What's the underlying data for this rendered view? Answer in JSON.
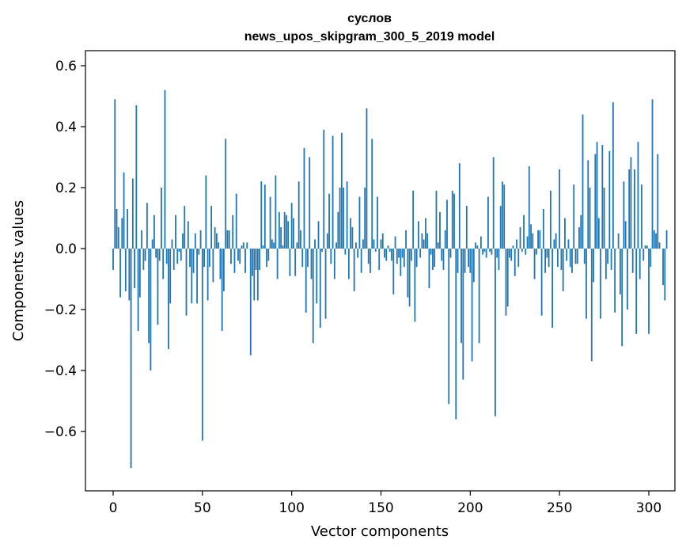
{
  "chart_data": {
    "type": "bar",
    "title_line1": "суслов",
    "title_line2": "news_upos_skipgram_300_5_2019 model",
    "xlabel": "Vector components",
    "ylabel": "Components values",
    "xlim": [
      -15,
      315
    ],
    "ylim": [
      -0.8,
      0.65
    ],
    "x_ticks": [
      0,
      50,
      100,
      150,
      200,
      250,
      300
    ],
    "x_tick_labels": [
      "0",
      "50",
      "100",
      "150",
      "200",
      "250",
      "300"
    ],
    "y_ticks": [
      -0.6,
      -0.4,
      -0.2,
      0.0,
      0.2,
      0.4,
      0.6
    ],
    "y_tick_labels": [
      "−0.6",
      "−0.4",
      "−0.2",
      "0.0",
      "0.2",
      "0.4",
      "0.6"
    ],
    "bar_color": "#1f77b4",
    "values": [
      -0.07,
      0.49,
      0.13,
      0.07,
      -0.16,
      0.1,
      0.25,
      -0.14,
      0.13,
      -0.17,
      -0.72,
      0.23,
      -0.13,
      0.47,
      -0.27,
      -0.16,
      0.06,
      -0.07,
      -0.04,
      0.15,
      -0.31,
      -0.4,
      0.03,
      0.11,
      -0.03,
      -0.25,
      -0.04,
      0.2,
      -0.1,
      0.52,
      -0.05,
      -0.33,
      -0.18,
      0.03,
      -0.07,
      0.11,
      -0.05,
      -0.01,
      -0.04,
      0.05,
      0.14,
      -0.22,
      0.09,
      -0.06,
      -0.18,
      -0.08,
      0.05,
      -0.18,
      -0.02,
      0.06,
      -0.63,
      -0.06,
      0.24,
      -0.17,
      -0.06,
      0.14,
      -0.11,
      0.07,
      0.05,
      0.02,
      -0.1,
      -0.27,
      -0.14,
      0.36,
      0.06,
      0.06,
      -0.05,
      0.11,
      -0.08,
      0.18,
      -0.04,
      -0.05,
      0.01,
      0.02,
      -0.08,
      0.02,
      0.0,
      -0.35,
      -0.09,
      -0.17,
      -0.07,
      -0.17,
      -0.07,
      0.22,
      0.01,
      0.21,
      -0.06,
      -0.04,
      0.17,
      0.03,
      0.02,
      0.24,
      -0.1,
      0.12,
      0.07,
      0.01,
      0.12,
      0.11,
      0.09,
      -0.09,
      0.15,
      0.1,
      -0.09,
      0.02,
      0.22,
      0.06,
      -0.06,
      0.33,
      -0.21,
      -0.06,
      0.3,
      -0.1,
      -0.31,
      0.03,
      -0.18,
      0.09,
      -0.26,
      -0.01,
      0.39,
      -0.23,
      0.05,
      0.18,
      -0.05,
      0.37,
      -0.1,
      0.02,
      0.12,
      0.2,
      0.38,
      0.2,
      -0.02,
      0.22,
      -0.1,
      0.1,
      0.07,
      -0.14,
      0.02,
      -0.03,
      0.17,
      -0.08,
      0.03,
      0.2,
      0.46,
      -0.05,
      -0.08,
      0.36,
      0.03,
      -0.01,
      0.17,
      -0.07,
      0.03,
      0.05,
      -0.03,
      -0.04,
      0.01,
      -0.01,
      -0.04,
      -0.15,
      0.04,
      -0.05,
      -0.03,
      -0.09,
      -0.03,
      -0.06,
      0.06,
      -0.16,
      -0.19,
      -0.04,
      0.19,
      -0.24,
      -0.06,
      0.09,
      -0.03,
      0.05,
      0.03,
      0.1,
      0.05,
      -0.13,
      -0.02,
      -0.07,
      -0.06,
      0.19,
      0.02,
      0.12,
      -0.04,
      -0.07,
      0.06,
      0.16,
      -0.51,
      -0.03,
      0.19,
      0.18,
      -0.56,
      -0.08,
      0.28,
      -0.31,
      -0.43,
      -0.08,
      0.14,
      -0.06,
      -0.08,
      -0.37,
      -0.11,
      0.02,
      0.01,
      -0.31,
      0.04,
      -0.02,
      -0.01,
      -0.03,
      0.17,
      -0.01,
      -0.02,
      0.3,
      -0.55,
      -0.03,
      -0.07,
      0.14,
      0.22,
      0.21,
      -0.22,
      -0.19,
      -0.03,
      -0.04,
      0.01,
      -0.09,
      0.03,
      -0.06,
      0.07,
      -0.01,
      0.11,
      -0.02,
      0.04,
      0.27,
      0.08,
      0.05,
      -0.1,
      -0.02,
      0.06,
      0.06,
      -0.22,
      0.13,
      -0.08,
      -0.03,
      -0.06,
      0.19,
      -0.26,
      0.03,
      0.05,
      -0.06,
      0.26,
      -0.07,
      -0.14,
      0.1,
      -0.04,
      0.03,
      -0.06,
      -0.08,
      0.21,
      -0.05,
      -0.05,
      0.07,
      0.11,
      0.44,
      -0.05,
      -0.23,
      0.29,
      0.2,
      -0.37,
      -0.11,
      0.31,
      0.35,
      0.1,
      -0.23,
      0.34,
      0.2,
      -0.1,
      -0.05,
      0.32,
      -0.07,
      0.48,
      -0.21,
      0.0,
      0.05,
      -0.15,
      -0.32,
      0.22,
      0.09,
      -0.2,
      0.26,
      0.3,
      -0.08,
      0.26,
      -0.28,
      0.35,
      -0.1,
      0.21,
      -0.04,
      0.01,
      0.01,
      -0.28,
      -0.06,
      0.49,
      0.06,
      0.05,
      0.31,
      0.02,
      0.0,
      -0.12,
      -0.17,
      0.06
    ]
  }
}
